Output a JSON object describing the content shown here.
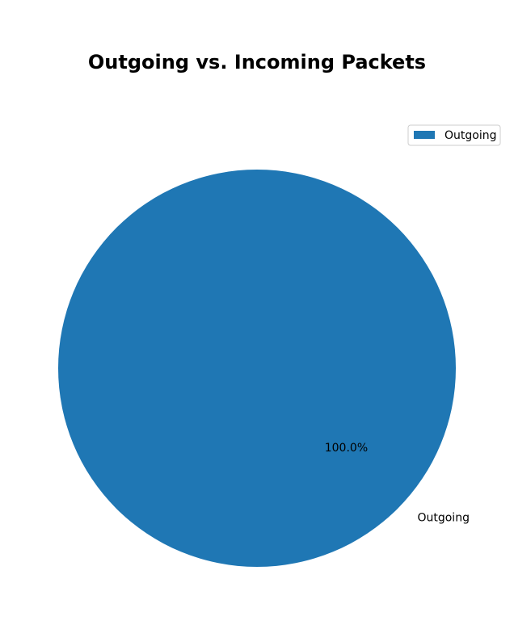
{
  "chart_data": {
    "type": "pie",
    "title": "Outgoing vs. Incoming Packets",
    "categories": [
      "Outgoing"
    ],
    "values": [
      100
    ],
    "slice_labels": [
      "Outgoing"
    ],
    "autopct_labels": [
      "100.0%"
    ],
    "colors": [
      "#1f77b4"
    ],
    "legend": {
      "placement": "top-right",
      "entries": [
        "Outgoing"
      ]
    }
  }
}
